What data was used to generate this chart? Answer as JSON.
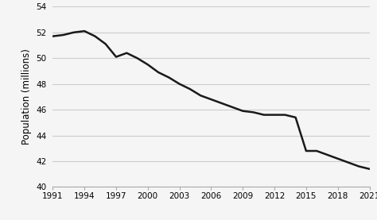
{
  "years": [
    1991,
    1992,
    1993,
    1994,
    1995,
    1996,
    1997,
    1998,
    1999,
    2000,
    2001,
    2002,
    2003,
    2004,
    2005,
    2006,
    2007,
    2008,
    2009,
    2010,
    2011,
    2012,
    2013,
    2014,
    2015,
    2016,
    2017,
    2018,
    2019,
    2020,
    2021
  ],
  "population": [
    51.7,
    51.8,
    52.0,
    52.1,
    51.7,
    51.1,
    50.1,
    50.4,
    50.0,
    49.5,
    48.9,
    48.5,
    48.0,
    47.6,
    47.1,
    46.8,
    46.5,
    46.2,
    45.9,
    45.8,
    45.6,
    45.6,
    45.6,
    45.4,
    42.8,
    42.8,
    42.5,
    42.2,
    41.9,
    41.6,
    41.4
  ],
  "xticks": [
    1991,
    1994,
    1997,
    2000,
    2003,
    2006,
    2009,
    2012,
    2015,
    2018,
    2021
  ],
  "yticks": [
    40,
    42,
    44,
    46,
    48,
    50,
    52,
    54
  ],
  "ylim": [
    40,
    54
  ],
  "xlim": [
    1991,
    2021
  ],
  "ylabel": "Population (millions)",
  "line_color": "#1a1a1a",
  "line_width": 1.8,
  "grid_color": "#cccccc",
  "bg_color": "#f5f5f5",
  "tick_fontsize": 7.5,
  "label_fontsize": 8.5
}
